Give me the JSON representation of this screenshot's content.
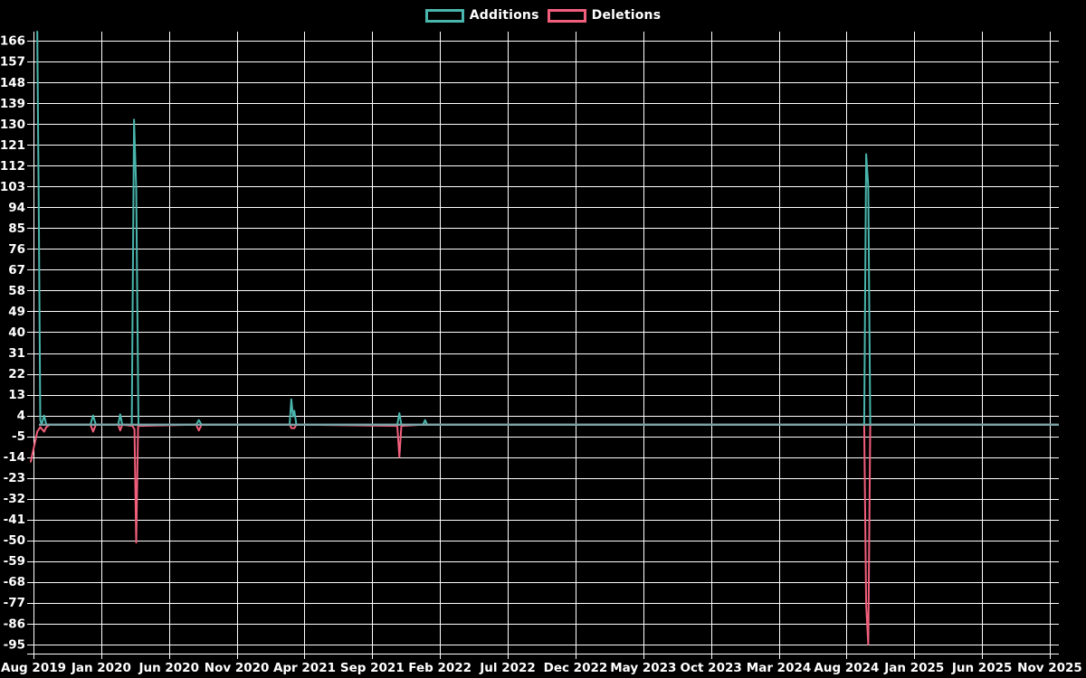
{
  "legend": [
    {
      "label": "Additions",
      "color": "#49b6ad"
    },
    {
      "label": "Deletions",
      "color": "#f25f7c"
    }
  ],
  "colors": {
    "background": "#000000",
    "grid": "#ffffff",
    "axis": "#ffffff",
    "tick_text": "#ffffff",
    "additions": "#49b6ad",
    "deletions": "#f25f7c",
    "baseline_overlap": "#7ca3a6"
  },
  "chart_data": {
    "type": "line",
    "title": "",
    "xlabel": "",
    "ylabel": "",
    "grid": true,
    "legend_position": "top-center",
    "x_unit": "months since Aug 2019",
    "x_tick_months": [
      0,
      5,
      10,
      15,
      20,
      25,
      30,
      35,
      40,
      45,
      50,
      55,
      60,
      65,
      70,
      75
    ],
    "x_tick_labels": [
      "Aug 2019",
      "Jan 2020",
      "Jun 2020",
      "Nov 2020",
      "Apr 2021",
      "Sep 2021",
      "Feb 2022",
      "Jul 2022",
      "Dec 2022",
      "May 2023",
      "Oct 2023",
      "Mar 2024",
      "Aug 2024",
      "Jan 2025",
      "Jun 2025",
      "Nov 2025"
    ],
    "y_ticks": [
      166,
      157,
      148,
      139,
      130,
      121,
      112,
      103,
      94,
      85,
      76,
      67,
      58,
      49,
      40,
      31,
      22,
      13,
      4,
      -5,
      -14,
      -23,
      -32,
      -41,
      -50,
      -59,
      -68,
      -77,
      -86,
      -95
    ],
    "ylim": [
      -99,
      170
    ],
    "xlim_months": [
      -0.3,
      75.6
    ],
    "series": [
      {
        "name": "Additions",
        "color": "#49b6ad",
        "points": [
          [
            0.28,
            170
          ],
          [
            0.4,
            85
          ],
          [
            0.5,
            2
          ],
          [
            0.6,
            0
          ],
          [
            0.78,
            4
          ],
          [
            0.95,
            0
          ],
          [
            4.2,
            0
          ],
          [
            4.4,
            4
          ],
          [
            4.6,
            0
          ],
          [
            6.25,
            0
          ],
          [
            6.4,
            4.5
          ],
          [
            6.55,
            0
          ],
          [
            7.25,
            0
          ],
          [
            7.42,
            132
          ],
          [
            7.58,
            102
          ],
          [
            7.75,
            0
          ],
          [
            12.0,
            0
          ],
          [
            12.2,
            2
          ],
          [
            12.4,
            0
          ],
          [
            18.9,
            0
          ],
          [
            19.03,
            11
          ],
          [
            19.15,
            3.5
          ],
          [
            19.25,
            6
          ],
          [
            19.4,
            0
          ],
          [
            26.85,
            0
          ],
          [
            27.0,
            5
          ],
          [
            27.15,
            0
          ],
          [
            28.75,
            0
          ],
          [
            28.9,
            2
          ],
          [
            29.05,
            0
          ],
          [
            61.3,
            0
          ],
          [
            61.45,
            117
          ],
          [
            61.6,
            103
          ],
          [
            61.75,
            0
          ],
          [
            75.5,
            0
          ]
        ]
      },
      {
        "name": "Deletions",
        "color": "#f25f7c",
        "points": [
          [
            -0.2,
            -16
          ],
          [
            0.28,
            -3
          ],
          [
            0.5,
            -1
          ],
          [
            0.78,
            -3
          ],
          [
            0.95,
            -1
          ],
          [
            1.2,
            0
          ],
          [
            4.2,
            0
          ],
          [
            4.4,
            -3
          ],
          [
            4.6,
            0
          ],
          [
            6.25,
            0
          ],
          [
            6.4,
            -2.5
          ],
          [
            6.55,
            0
          ],
          [
            7.3,
            -0.5
          ],
          [
            7.45,
            -2
          ],
          [
            7.58,
            -51
          ],
          [
            7.72,
            -0.5
          ],
          [
            12.0,
            0
          ],
          [
            12.2,
            -2.5
          ],
          [
            12.4,
            0
          ],
          [
            18.9,
            0
          ],
          [
            19.05,
            -1.5
          ],
          [
            19.25,
            -1.5
          ],
          [
            19.4,
            0
          ],
          [
            26.85,
            -0.5
          ],
          [
            27.0,
            -14
          ],
          [
            27.15,
            -0.5
          ],
          [
            28.75,
            0
          ],
          [
            61.3,
            0
          ],
          [
            61.45,
            -78
          ],
          [
            61.6,
            -95
          ],
          [
            61.75,
            0
          ],
          [
            75.5,
            0
          ]
        ]
      }
    ]
  }
}
